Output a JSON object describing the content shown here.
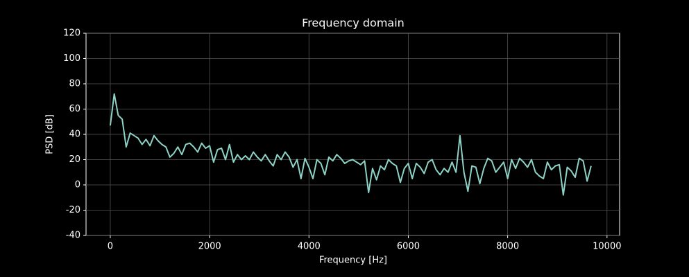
{
  "chart_data": {
    "type": "line",
    "title": "Frequency domain",
    "x_label": "Frequency [Hz]",
    "y_label": "PSD [dB]",
    "x": [
      0,
      80,
      160,
      240,
      320,
      400,
      480,
      560,
      640,
      720,
      800,
      880,
      960,
      1040,
      1120,
      1200,
      1280,
      1360,
      1440,
      1520,
      1600,
      1680,
      1760,
      1840,
      1920,
      2000,
      2080,
      2160,
      2240,
      2320,
      2400,
      2480,
      2560,
      2640,
      2720,
      2800,
      2880,
      2960,
      3040,
      3120,
      3200,
      3280,
      3360,
      3440,
      3520,
      3600,
      3680,
      3760,
      3840,
      3920,
      4000,
      4080,
      4160,
      4240,
      4320,
      4400,
      4480,
      4560,
      4640,
      4720,
      4800,
      4880,
      4960,
      5040,
      5120,
      5200,
      5280,
      5360,
      5440,
      5520,
      5600,
      5680,
      5760,
      5840,
      5920,
      6000,
      6080,
      6160,
      6240,
      6320,
      6400,
      6480,
      6560,
      6640,
      6720,
      6800,
      6880,
      6960,
      7040,
      7120,
      7200,
      7280,
      7360,
      7440,
      7520,
      7600,
      7680,
      7760,
      7840,
      7920,
      8000,
      8080,
      8160,
      8240,
      8320,
      8400,
      8480,
      8560,
      8640,
      8720,
      8800,
      8880,
      8960,
      9040,
      9120,
      9200,
      9280,
      9360,
      9440,
      9520,
      9600,
      9680
    ],
    "series": [
      {
        "name": "PSD",
        "color": "#8dd3c7",
        "values": [
          47,
          72,
          55,
          52,
          30,
          41,
          39,
          37,
          32,
          36,
          31,
          39,
          35,
          32,
          30,
          22,
          25,
          30,
          24,
          32,
          33,
          30,
          26,
          33,
          29,
          31,
          18,
          28,
          29,
          20,
          32,
          18,
          24,
          20,
          23,
          20,
          26,
          22,
          19,
          24,
          19,
          15,
          24,
          20,
          26,
          22,
          14,
          20,
          5,
          21,
          14,
          5,
          20,
          17,
          8,
          22,
          19,
          24,
          21,
          17,
          19,
          20,
          18,
          16,
          19,
          -6,
          13,
          4,
          15,
          12,
          20,
          17,
          15,
          2,
          13,
          17,
          5,
          17,
          14,
          9,
          18,
          20,
          12,
          8,
          13,
          10,
          18,
          10,
          39,
          10,
          -5,
          15,
          14,
          1,
          13,
          21,
          19,
          10,
          14,
          18,
          5,
          20,
          13,
          21,
          18,
          14,
          20,
          10,
          7,
          5,
          18,
          12,
          15,
          16,
          -8,
          14,
          11,
          6,
          21,
          19,
          3,
          15
        ]
      }
    ],
    "xlim": [
      -488,
      10254
    ],
    "ylim": [
      -40,
      120
    ],
    "xticks": [
      0,
      2000,
      4000,
      6000,
      8000,
      10000
    ],
    "yticks": [
      -40,
      -20,
      0,
      20,
      40,
      60,
      80,
      100,
      120
    ],
    "grid": true
  }
}
